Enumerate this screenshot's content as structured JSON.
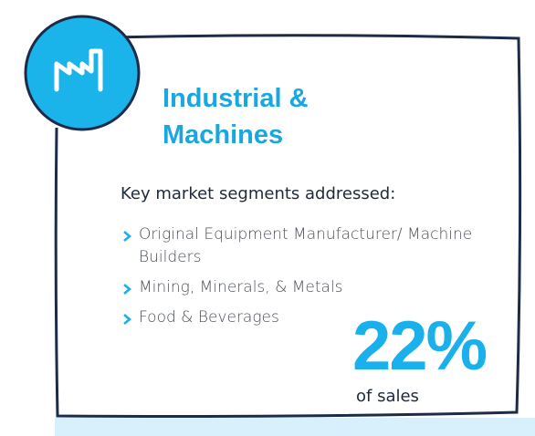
{
  "header": {
    "title_lines": [
      "Industrial &",
      "Machines"
    ]
  },
  "intro": "Key market segments addressed:",
  "segments": [
    "Original Equipment Manufacturer/ Machine Builders",
    "Mining, Minerals, & Metals",
    "Food & Beverages"
  ],
  "stat": {
    "value": "22%",
    "label": "of sales"
  }
}
